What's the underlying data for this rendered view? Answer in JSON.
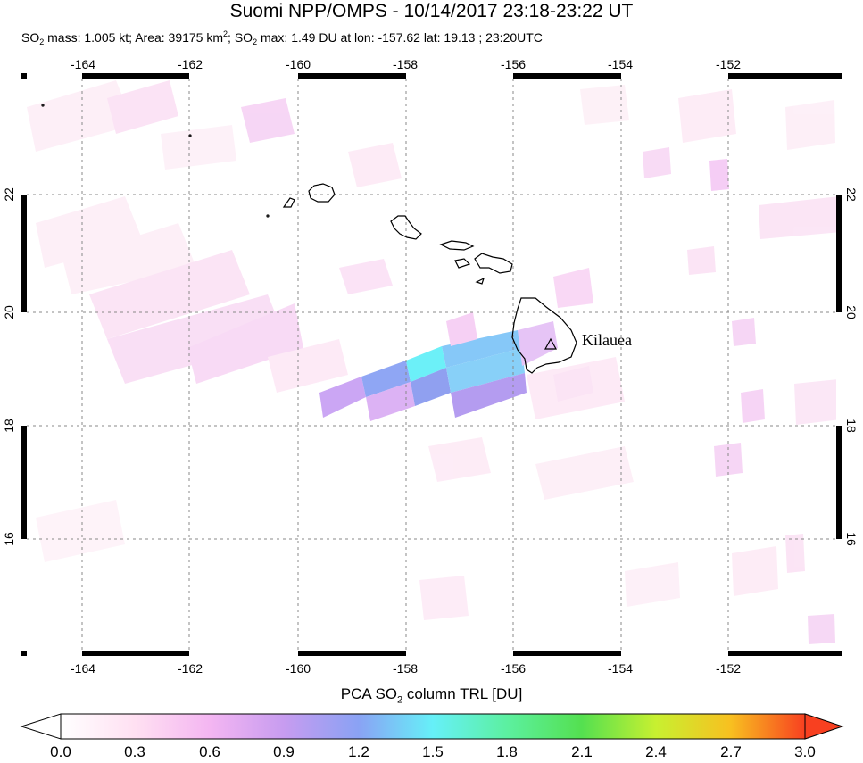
{
  "title": "Suomi NPP/OMPS - 10/14/2017 23:18-23:22 UT",
  "subtitle": {
    "so2_label": "SO",
    "so2_sub": "2",
    "mass": " mass: 1.005 kt; Area: 39175 km",
    "area_sup": "2",
    "sep": "; SO",
    "so2_sub2": "2",
    "rest": " max: 1.49 DU at lon: -157.62 lat: 19.13 ; 23:20UTC"
  },
  "map": {
    "lon_ticks": [
      "-164",
      "-162",
      "-160",
      "-158",
      "-156",
      "-154",
      "-152"
    ],
    "lat_ticks": [
      "22",
      "20",
      "18",
      "16"
    ],
    "volcano": "Kilauea"
  },
  "colorbar": {
    "title_pre": "PCA SO",
    "title_sub": "2",
    "title_post": " column TRL [DU]",
    "ticks": [
      "0.0",
      "0.3",
      "0.6",
      "0.9",
      "1.2",
      "1.5",
      "1.8",
      "2.1",
      "2.4",
      "2.7",
      "3.0"
    ],
    "colors": [
      "#ffffff",
      "#ffe0f2",
      "#f4b6f2",
      "#c79cf0",
      "#8aa2f4",
      "#66f0f8",
      "#5cf0a0",
      "#54e050",
      "#c8f030",
      "#f8c020",
      "#f84020"
    ]
  }
}
